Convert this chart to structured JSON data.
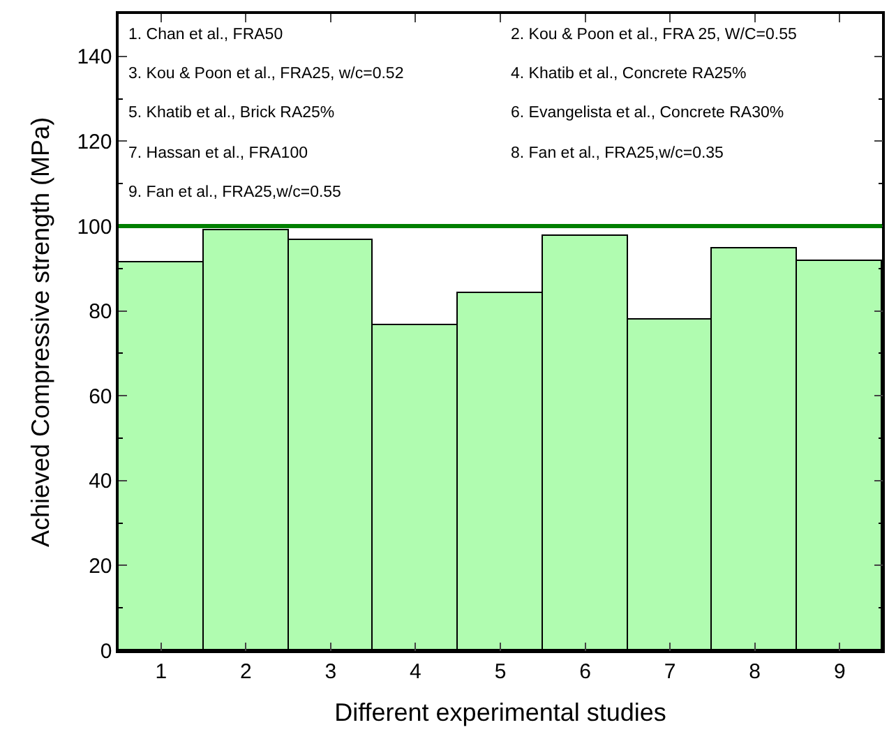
{
  "chart_data": {
    "type": "bar",
    "xlabel": "Different experimental studies",
    "ylabel": "Achieved Compressive strength (MPa)",
    "x": [
      1,
      2,
      3,
      4,
      5,
      6,
      7,
      8,
      9
    ],
    "values": [
      91.5,
      98.9,
      96.7,
      76.5,
      84.1,
      97.6,
      78.0,
      94.6,
      91.9
    ],
    "color": "#b0fcb0",
    "xlim": [
      0.5,
      9.5
    ],
    "xticks": [
      1,
      2,
      3,
      4,
      5,
      6,
      7,
      8,
      9
    ],
    "ylim": [
      0,
      150
    ],
    "yticks": [
      0,
      20,
      40,
      60,
      80,
      100,
      120,
      140
    ],
    "ref_lines": [
      {
        "axis": "y",
        "value": 100,
        "color": "#008000"
      }
    ],
    "annotations": [
      "1. Chan et al., FRA50",
      "2. Kou & Poon et al., FRA 25, W/C=0.55",
      "3. Kou & Poon et al., FRA25, w/c=0.52",
      "4. Khatib et al., Concrete RA25%",
      "5. Khatib et al., Brick RA25%",
      "6. Evangelista et al., Concrete RA30%",
      "7. Hassan et al., FRA100",
      "8. Fan et al., FRA25,w/c=0.35",
      "9. Fan et al., FRA25,w/c=0.55"
    ],
    "legend": false
  }
}
